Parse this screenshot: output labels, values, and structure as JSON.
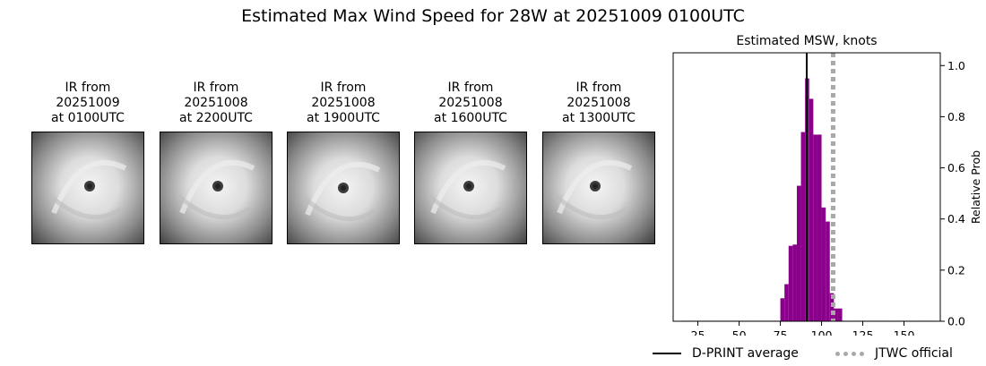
{
  "title": "Estimated Max Wind Speed for 28W at 20251009 0100UTC",
  "panels": [
    {
      "caption": "IR from\n20251009\nat 0100UTC",
      "icon": "satellite-ir-image"
    },
    {
      "caption": "IR from\n20251008\nat 2200UTC",
      "icon": "satellite-ir-image"
    },
    {
      "caption": "IR from\n20251008\nat 1900UTC",
      "icon": "satellite-ir-image"
    },
    {
      "caption": "IR from\n20251008\nat 1600UTC",
      "icon": "satellite-ir-image"
    },
    {
      "caption": "IR from\n20251008\nat 1300UTC",
      "icon": "satellite-ir-image"
    }
  ],
  "chart_data": {
    "type": "bar",
    "title": "Estimated MSW, knots",
    "xlabel": "",
    "ylabel": "Relative Prob",
    "xlim": [
      10,
      172
    ],
    "ylim": [
      0,
      1.05
    ],
    "xticks": [
      25,
      50,
      75,
      100,
      125,
      150
    ],
    "yticks": [
      0.0,
      0.2,
      0.4,
      0.6,
      0.8,
      1.0
    ],
    "bin_width": 2.5,
    "bar_color": "#8b008b",
    "bins": [
      {
        "x0": 15.0,
        "value": 0.002
      },
      {
        "x0": 17.5,
        "value": 0.002
      },
      {
        "x0": 20.0,
        "value": 0.002
      },
      {
        "x0": 22.5,
        "value": 0.002
      },
      {
        "x0": 25.0,
        "value": 0.002
      },
      {
        "x0": 27.5,
        "value": 0.002
      },
      {
        "x0": 30.0,
        "value": 0.002
      },
      {
        "x0": 32.5,
        "value": 0.002
      },
      {
        "x0": 35.0,
        "value": 0.002
      },
      {
        "x0": 37.5,
        "value": 0.002
      },
      {
        "x0": 40.0,
        "value": 0.002
      },
      {
        "x0": 42.5,
        "value": 0.002
      },
      {
        "x0": 45.0,
        "value": 0.002
      },
      {
        "x0": 47.5,
        "value": 0.002
      },
      {
        "x0": 50.0,
        "value": 0.002
      },
      {
        "x0": 52.5,
        "value": 0.002
      },
      {
        "x0": 55.0,
        "value": 0.002
      },
      {
        "x0": 57.5,
        "value": 0.002
      },
      {
        "x0": 60.0,
        "value": 0.002
      },
      {
        "x0": 62.5,
        "value": 0.002
      },
      {
        "x0": 65.0,
        "value": 0.002
      },
      {
        "x0": 67.5,
        "value": 0.002
      },
      {
        "x0": 70.0,
        "value": 0.002
      },
      {
        "x0": 72.5,
        "value": 0.002
      },
      {
        "x0": 75.0,
        "value": 0.09
      },
      {
        "x0": 77.5,
        "value": 0.145
      },
      {
        "x0": 80.0,
        "value": 0.295
      },
      {
        "x0": 82.5,
        "value": 0.3
      },
      {
        "x0": 85.0,
        "value": 0.53
      },
      {
        "x0": 87.5,
        "value": 0.74
      },
      {
        "x0": 90.0,
        "value": 0.95
      },
      {
        "x0": 92.5,
        "value": 0.87
      },
      {
        "x0": 95.0,
        "value": 0.73
      },
      {
        "x0": 97.5,
        "value": 0.73
      },
      {
        "x0": 100.0,
        "value": 0.445
      },
      {
        "x0": 102.5,
        "value": 0.39
      },
      {
        "x0": 105.0,
        "value": 0.11
      },
      {
        "x0": 107.5,
        "value": 0.05
      },
      {
        "x0": 110.0,
        "value": 0.05
      },
      {
        "x0": 112.5,
        "value": 0.002
      },
      {
        "x0": 115.0,
        "value": 0.002
      },
      {
        "x0": 117.5,
        "value": 0.002
      },
      {
        "x0": 120.0,
        "value": 0.002
      },
      {
        "x0": 122.5,
        "value": 0.002
      },
      {
        "x0": 125.0,
        "value": 0.002
      },
      {
        "x0": 127.5,
        "value": 0.002
      },
      {
        "x0": 130.0,
        "value": 0.002
      },
      {
        "x0": 132.5,
        "value": 0.002
      },
      {
        "x0": 135.0,
        "value": 0.002
      },
      {
        "x0": 137.5,
        "value": 0.002
      },
      {
        "x0": 140.0,
        "value": 0.002
      },
      {
        "x0": 142.5,
        "value": 0.002
      },
      {
        "x0": 145.0,
        "value": 0.002
      },
      {
        "x0": 147.5,
        "value": 0.002
      },
      {
        "x0": 150.0,
        "value": 0.002
      },
      {
        "x0": 152.5,
        "value": 0.002
      },
      {
        "x0": 155.0,
        "value": 0.002
      },
      {
        "x0": 157.5,
        "value": 0.002
      },
      {
        "x0": 160.0,
        "value": 0.002
      },
      {
        "x0": 162.5,
        "value": 0.002
      },
      {
        "x0": 165.0,
        "value": 0.002
      },
      {
        "x0": 167.5,
        "value": 0.002
      }
    ],
    "lines": [
      {
        "name": "D-PRINT average",
        "x": 91,
        "color": "#000000",
        "style": "solid"
      },
      {
        "name": "JTWC official",
        "x": 107,
        "color": "#a9a9a9",
        "style": "dotted"
      }
    ],
    "legend_position": "bottom"
  }
}
